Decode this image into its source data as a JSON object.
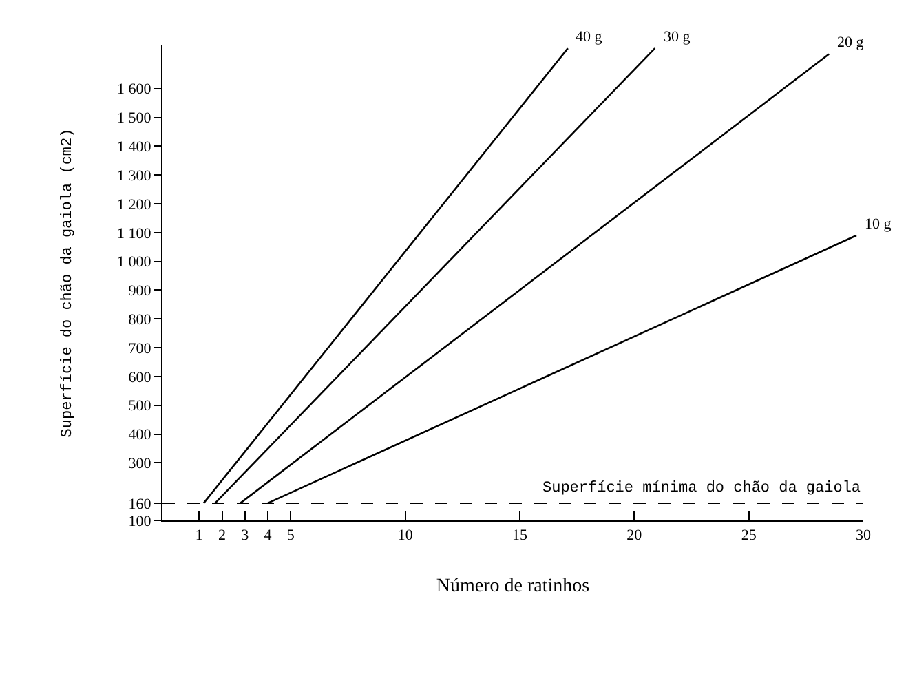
{
  "chart_data": {
    "type": "line",
    "xlabel": "Número de ratinhos",
    "ylabel": "Superfície do chão da gaiola (cm2)",
    "xlim": [
      -0.6,
      30
    ],
    "xticks": [
      1,
      2,
      3,
      4,
      5,
      10,
      15,
      20,
      25,
      30
    ],
    "ylim": [
      100,
      1750
    ],
    "yticks": [
      100,
      160,
      300,
      400,
      500,
      600,
      700,
      800,
      900,
      {
        "value": 1000,
        "label": "1 000"
      },
      {
        "value": 1100,
        "label": "1 100"
      },
      {
        "value": 1200,
        "label": "1 200"
      },
      {
        "value": 1300,
        "label": "1 300"
      },
      {
        "value": 1400,
        "label": "1 400"
      },
      {
        "value": 1500,
        "label": "1 500"
      },
      {
        "value": 1600,
        "label": "1 600"
      }
    ],
    "grid": false,
    "legend": false,
    "marker": "none",
    "line_style": "solid",
    "series": [
      {
        "name": "40 g",
        "color": "#000000",
        "x": [
          1.2,
          17.1
        ],
        "values": [
          160,
          1740
        ]
      },
      {
        "name": "30 g",
        "color": "#000000",
        "x": [
          1.7,
          20.9
        ],
        "values": [
          160,
          1740
        ]
      },
      {
        "name": "20 g",
        "color": "#000000",
        "x": [
          2.8,
          28.5
        ],
        "values": [
          160,
          1720
        ]
      },
      {
        "name": "10 g",
        "color": "#000000",
        "x": [
          4.0,
          29.7
        ],
        "values": [
          160,
          1090
        ]
      }
    ],
    "ref_lines": [
      {
        "axis": "y",
        "value": 160,
        "label": "Superfície mínima do chão da gaiola",
        "color": "#000000",
        "line_style": "dashed"
      }
    ]
  }
}
